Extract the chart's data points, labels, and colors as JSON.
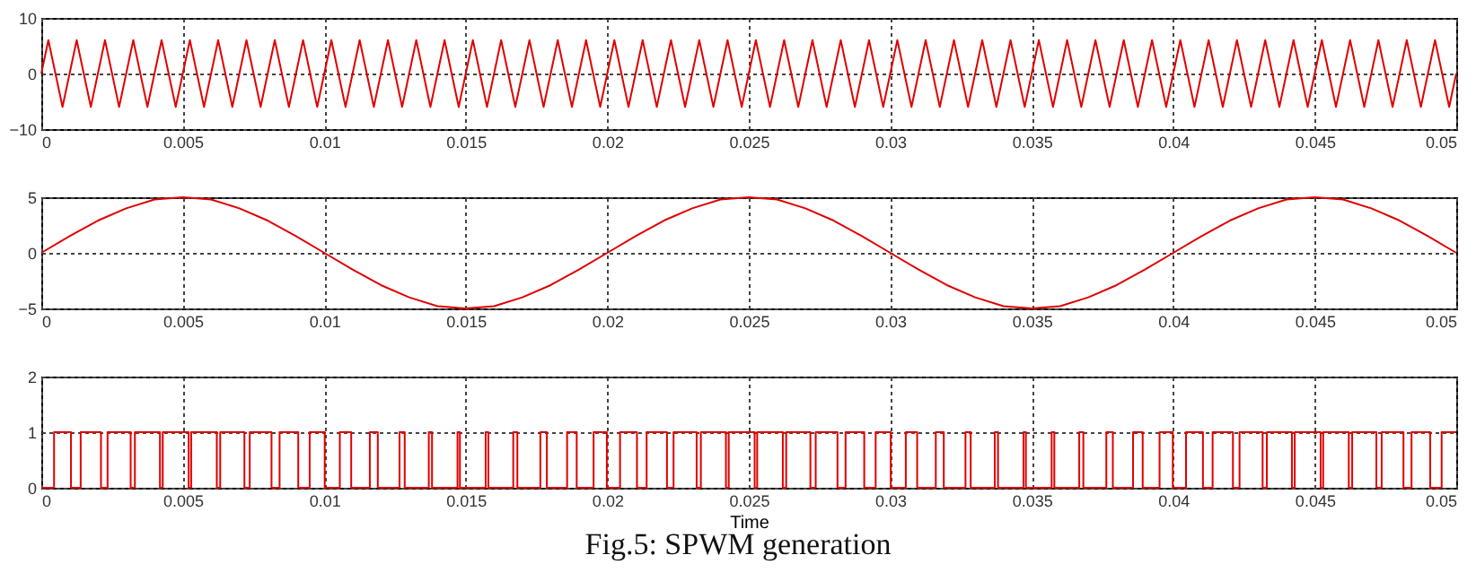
{
  "chart_data": [
    {
      "type": "line",
      "x": [
        0,
        0.00025,
        0.00075,
        0.00125,
        0.00175,
        0.00225,
        0.00275,
        0.00325,
        0.00375,
        0.00425,
        0.00475,
        0.00525,
        0.00575,
        0.00625,
        0.00675,
        0.00725,
        0.00775,
        0.00825,
        0.00875,
        0.00925,
        0.00975,
        0.01025,
        0.01075,
        0.01125,
        0.01175,
        0.01225,
        0.01275,
        0.01325,
        0.01375,
        0.01425,
        0.01475,
        0.01525,
        0.01575,
        0.01625,
        0.01675,
        0.01725,
        0.01775,
        0.01825,
        0.01875,
        0.01925,
        0.01975,
        0.02025,
        0.02075,
        0.02125,
        0.02175,
        0.02225,
        0.02275,
        0.02325,
        0.02375,
        0.02425,
        0.02475,
        0.02525,
        0.02575,
        0.02625,
        0.02675,
        0.02725,
        0.02775,
        0.02825,
        0.02875,
        0.02925,
        0.02975,
        0.03025,
        0.03075,
        0.03125,
        0.03175,
        0.03225,
        0.03275,
        0.03325,
        0.03375,
        0.03425,
        0.03475,
        0.03525,
        0.03575,
        0.03625,
        0.03675,
        0.03725,
        0.03775,
        0.03825,
        0.03875,
        0.03925,
        0.03975,
        0.04025,
        0.04075,
        0.04125,
        0.04175,
        0.04225,
        0.04275,
        0.04325,
        0.04375,
        0.04425,
        0.04475,
        0.04525,
        0.04575,
        0.04625,
        0.04675,
        0.04725,
        0.04775,
        0.04825,
        0.04875,
        0.04925,
        0.04975,
        0.05
      ],
      "series": [
        {
          "color": "#e00000",
          "values": [
            0,
            6,
            -6,
            6,
            -6,
            6,
            -6,
            6,
            -6,
            6,
            -6,
            6,
            -6,
            6,
            -6,
            6,
            -6,
            6,
            -6,
            6,
            -6,
            6,
            -6,
            6,
            -6,
            6,
            -6,
            6,
            -6,
            6,
            -6,
            6,
            -6,
            6,
            -6,
            6,
            -6,
            6,
            -6,
            6,
            -6,
            6,
            -6,
            6,
            -6,
            6,
            -6,
            6,
            -6,
            6,
            -6,
            6,
            -6,
            6,
            -6,
            6,
            -6,
            6,
            -6,
            6,
            -6,
            6,
            -6,
            6,
            -6,
            6,
            -6,
            6,
            -6,
            6,
            -6,
            6,
            -6,
            6,
            -6,
            6,
            -6,
            6,
            -6,
            6,
            -6,
            6,
            -6,
            6,
            -6,
            6,
            -6,
            6,
            -6,
            6,
            -6,
            6,
            -6,
            6,
            -6,
            6,
            -6,
            6,
            -6,
            6,
            -6,
            0
          ]
        }
      ],
      "xlim": [
        0,
        0.05
      ],
      "xticks": [
        0,
        0.005,
        0.01,
        0.015,
        0.02,
        0.025,
        0.03,
        0.035,
        0.04,
        0.045,
        0.05
      ],
      "ylim": [
        -10,
        10
      ],
      "yticks": [
        -10,
        0,
        10
      ],
      "grid": true
    },
    {
      "type": "line",
      "x": [
        0,
        0.001,
        0.002,
        0.003,
        0.004,
        0.005,
        0.006,
        0.007,
        0.008,
        0.009,
        0.01,
        0.011,
        0.012,
        0.013,
        0.014,
        0.015,
        0.016,
        0.017,
        0.018,
        0.019,
        0.02,
        0.021,
        0.022,
        0.023,
        0.024,
        0.025,
        0.026,
        0.027,
        0.028,
        0.029,
        0.03,
        0.031,
        0.032,
        0.033,
        0.034,
        0.035,
        0.036,
        0.037,
        0.038,
        0.039,
        0.04,
        0.041,
        0.042,
        0.043,
        0.044,
        0.045,
        0.046,
        0.047,
        0.048,
        0.049,
        0.05
      ],
      "series": [
        {
          "color": "#e00000",
          "values": [
            0,
            1.5,
            2.9,
            4,
            4.8,
            5,
            4.8,
            4,
            2.9,
            1.5,
            0,
            -1.5,
            -2.9,
            -4,
            -4.8,
            -5,
            -4.8,
            -4,
            -2.9,
            -1.5,
            0,
            1.5,
            2.9,
            4,
            4.8,
            5,
            4.8,
            4,
            2.9,
            1.5,
            0,
            -1.5,
            -2.9,
            -4,
            -4.8,
            -5,
            -4.8,
            -4,
            -2.9,
            -1.5,
            0,
            1.5,
            2.9,
            4,
            4.8,
            5,
            4.8,
            4,
            2.9,
            1.5,
            0
          ]
        }
      ],
      "xlim": [
        0,
        0.05
      ],
      "xticks": [
        0,
        0.005,
        0.01,
        0.015,
        0.02,
        0.025,
        0.03,
        0.035,
        0.04,
        0.045,
        0.05
      ],
      "ylim": [
        -5,
        5
      ],
      "yticks": [
        -5,
        0,
        5
      ],
      "grid": true
    },
    {
      "type": "step",
      "x": [
        0,
        0.000451,
        0.001049,
        0.001391,
        0.002109,
        0.002342,
        0.003158,
        0.003307,
        0.004193,
        0.004292,
        0.005208,
        0.005297,
        0.006203,
        0.006322,
        0.007178,
        0.007365,
        0.008135,
        0.00842,
        0.00908,
        0.009484,
        0.010016,
        0.010549,
        0.010951,
        0.011609,
        0.011891,
        0.012658,
        0.012842,
        0.013693,
        0.013807,
        0.014708,
        0.014792,
        0.015703,
        0.015797,
        0.016678,
        0.016822,
        0.017635,
        0.017865,
        0.01858,
        0.01892,
        0.019516,
        0.019984,
        0.020451,
        0.021049,
        0.021391,
        0.022109,
        0.022342,
        0.023158,
        0.023307,
        0.024193,
        0.024292,
        0.025208,
        0.025297,
        0.026203,
        0.026322,
        0.027178,
        0.027365,
        0.028135,
        0.02842,
        0.02908,
        0.029484,
        0.030016,
        0.030549,
        0.030951,
        0.031609,
        0.031891,
        0.032658,
        0.032842,
        0.033693,
        0.033807,
        0.034708,
        0.034792,
        0.035703,
        0.035797,
        0.036678,
        0.036822,
        0.037635,
        0.037865,
        0.03858,
        0.03892,
        0.039516,
        0.039984,
        0.040451,
        0.041049,
        0.041391,
        0.042109,
        0.042342,
        0.043158,
        0.043307,
        0.044193,
        0.044292,
        0.045208,
        0.045297,
        0.046203,
        0.046322,
        0.047178,
        0.047365,
        0.048135,
        0.04842,
        0.04908,
        0.049484,
        0.05
      ],
      "series": [
        {
          "color": "#e00000",
          "values": [
            0,
            1,
            0,
            1,
            0,
            1,
            0,
            1,
            0,
            1,
            0,
            1,
            0,
            1,
            0,
            1,
            0,
            1,
            0,
            1,
            0,
            1,
            0,
            1,
            0,
            1,
            0,
            1,
            0,
            1,
            0,
            1,
            0,
            1,
            0,
            1,
            0,
            1,
            0,
            1,
            0,
            1,
            0,
            1,
            0,
            1,
            0,
            1,
            0,
            1,
            0,
            1,
            0,
            1,
            0,
            1,
            0,
            1,
            0,
            1,
            0,
            1,
            0,
            1,
            0,
            1,
            0,
            1,
            0,
            1,
            0,
            1,
            0,
            1,
            0,
            1,
            0,
            1,
            0,
            1,
            0,
            1,
            0,
            1,
            0,
            1,
            0,
            1,
            0,
            1,
            0,
            1,
            0,
            1,
            0,
            1,
            0,
            1,
            0,
            1,
            1
          ]
        }
      ],
      "xlim": [
        0,
        0.05
      ],
      "xticks": [
        0,
        0.005,
        0.01,
        0.015,
        0.02,
        0.025,
        0.03,
        0.035,
        0.04,
        0.045,
        0.05
      ],
      "ylim": [
        0,
        2
      ],
      "yticks": [
        0,
        1,
        2
      ],
      "grid": true,
      "xlabel": "Time",
      "annotations": [
        "Fig.5: SPWM generation"
      ]
    }
  ]
}
